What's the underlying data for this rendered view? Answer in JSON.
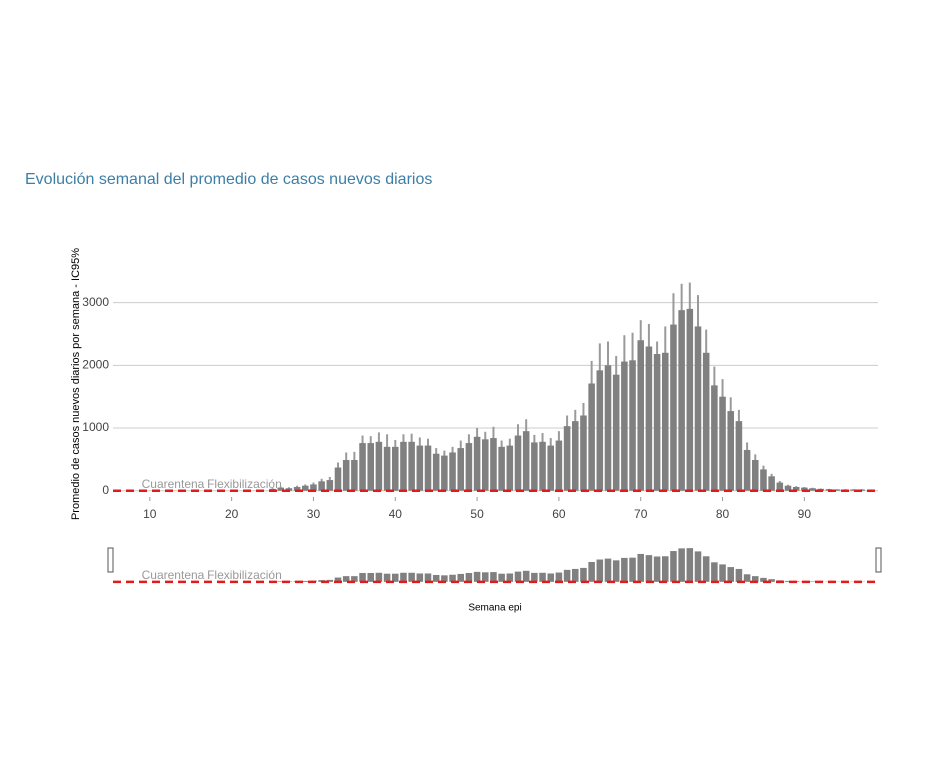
{
  "chart_data": {
    "type": "bar",
    "title": "Evolución semanal del promedio de casos nuevos diarios",
    "y_label": "Promedio de casos nuevos diarios por semana - IC95%",
    "x_label": "Semana epi",
    "x": [
      25,
      26,
      27,
      28,
      29,
      30,
      31,
      32,
      33,
      34,
      35,
      36,
      37,
      38,
      39,
      40,
      41,
      42,
      43,
      44,
      45,
      46,
      47,
      48,
      49,
      50,
      51,
      52,
      53,
      54,
      55,
      56,
      57,
      58,
      59,
      60,
      61,
      62,
      63,
      64,
      65,
      66,
      67,
      68,
      69,
      70,
      71,
      72,
      73,
      74,
      75,
      76,
      77,
      78,
      79,
      80,
      81,
      82,
      83,
      84,
      85,
      86,
      87,
      88,
      89,
      90,
      91,
      92,
      93,
      94,
      95,
      96,
      97
    ],
    "values": [
      30,
      50,
      40,
      60,
      80,
      100,
      150,
      170,
      370,
      490,
      490,
      760,
      760,
      780,
      700,
      700,
      780,
      780,
      720,
      720,
      590,
      560,
      610,
      680,
      760,
      860,
      820,
      840,
      700,
      720,
      880,
      950,
      770,
      780,
      720,
      800,
      1030,
      1110,
      1200,
      1710,
      1920,
      2000,
      1850,
      2060,
      2080,
      2400,
      2300,
      2180,
      2200,
      2650,
      2880,
      2900,
      2620,
      2200,
      1680,
      1500,
      1270,
      1110,
      650,
      490,
      340,
      230,
      130,
      80,
      60,
      50,
      40,
      30,
      25,
      20,
      20,
      20,
      20
    ],
    "errors": [
      10,
      15,
      15,
      20,
      20,
      30,
      40,
      50,
      80,
      120,
      130,
      120,
      110,
      150,
      200,
      110,
      120,
      130,
      130,
      110,
      90,
      80,
      90,
      120,
      140,
      140,
      120,
      180,
      100,
      110,
      180,
      190,
      120,
      140,
      120,
      150,
      170,
      180,
      200,
      360,
      430,
      380,
      300,
      420,
      440,
      320,
      360,
      200,
      420,
      500,
      420,
      420,
      500,
      370,
      300,
      280,
      220,
      180,
      120,
      90,
      60,
      40,
      25,
      15,
      12,
      10,
      8,
      6,
      5,
      5,
      5,
      5,
      5
    ],
    "color": "#808080",
    "error_color": "#9a9a9a",
    "xlim": [
      5.5,
      99
    ],
    "xticks": [
      10,
      20,
      30,
      40,
      50,
      60,
      70,
      80,
      90
    ],
    "ylim": [
      -100,
      3600
    ],
    "yticks": [
      0,
      1000,
      2000,
      3000
    ],
    "grid": true,
    "reference_line": {
      "value": 0,
      "color": "#e31a1c"
    },
    "annotations": [
      {
        "text": "Cuarentena",
        "x": 9
      },
      {
        "text": "Flexibilización",
        "x": 17
      }
    ]
  }
}
